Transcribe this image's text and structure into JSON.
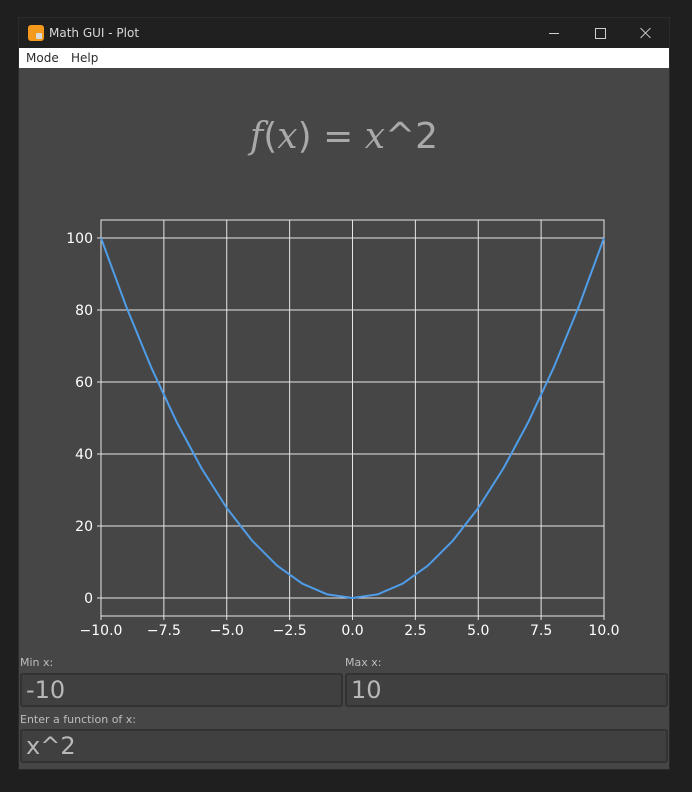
{
  "window": {
    "title": "Math GUI - Plot",
    "app_icon": "app-icon"
  },
  "menu": {
    "items": [
      "Mode",
      "Help"
    ]
  },
  "heading": {
    "fn_name": "f",
    "open_paren": "(",
    "var": "x",
    "close_paren": ")",
    "equals": " = ",
    "rhs_var": "x",
    "rhs_rest": "^2"
  },
  "inputs": {
    "min_label": "Min x:",
    "min_value": "-10",
    "max_label": "Max x:",
    "max_value": "10",
    "function_label": "Enter a function of x:",
    "function_value": "x^2"
  },
  "chart_data": {
    "type": "line",
    "title": "",
    "xlabel": "",
    "ylabel": "",
    "xlim": [
      -10,
      10
    ],
    "ylim": [
      -5,
      105
    ],
    "x_ticks": [
      -10,
      -7.5,
      -5,
      -2.5,
      0,
      2.5,
      5,
      7.5,
      10
    ],
    "x_tick_labels": [
      "−10.0",
      "−7.5",
      "−5.0",
      "−2.5",
      "0.0",
      "2.5",
      "5.0",
      "7.5",
      "10.0"
    ],
    "y_ticks": [
      0,
      20,
      40,
      60,
      80,
      100
    ],
    "y_tick_labels": [
      "0",
      "20",
      "40",
      "60",
      "80",
      "100"
    ],
    "grid": true,
    "series": [
      {
        "color": "#4f9de8",
        "x": [
          -10,
          -9,
          -8,
          -7,
          -6,
          -5,
          -4,
          -3,
          -2,
          -1,
          0,
          1,
          2,
          3,
          4,
          5,
          6,
          7,
          8,
          9,
          10
        ],
        "y": [
          100,
          81,
          64,
          49,
          36,
          25,
          16,
          9,
          4,
          1,
          0,
          1,
          4,
          9,
          16,
          25,
          36,
          49,
          64,
          81,
          100
        ]
      }
    ]
  },
  "colors": {
    "background": "#464646",
    "grid": "#e6e6e6",
    "text": "#ffffff",
    "line": "#4f9de8"
  }
}
